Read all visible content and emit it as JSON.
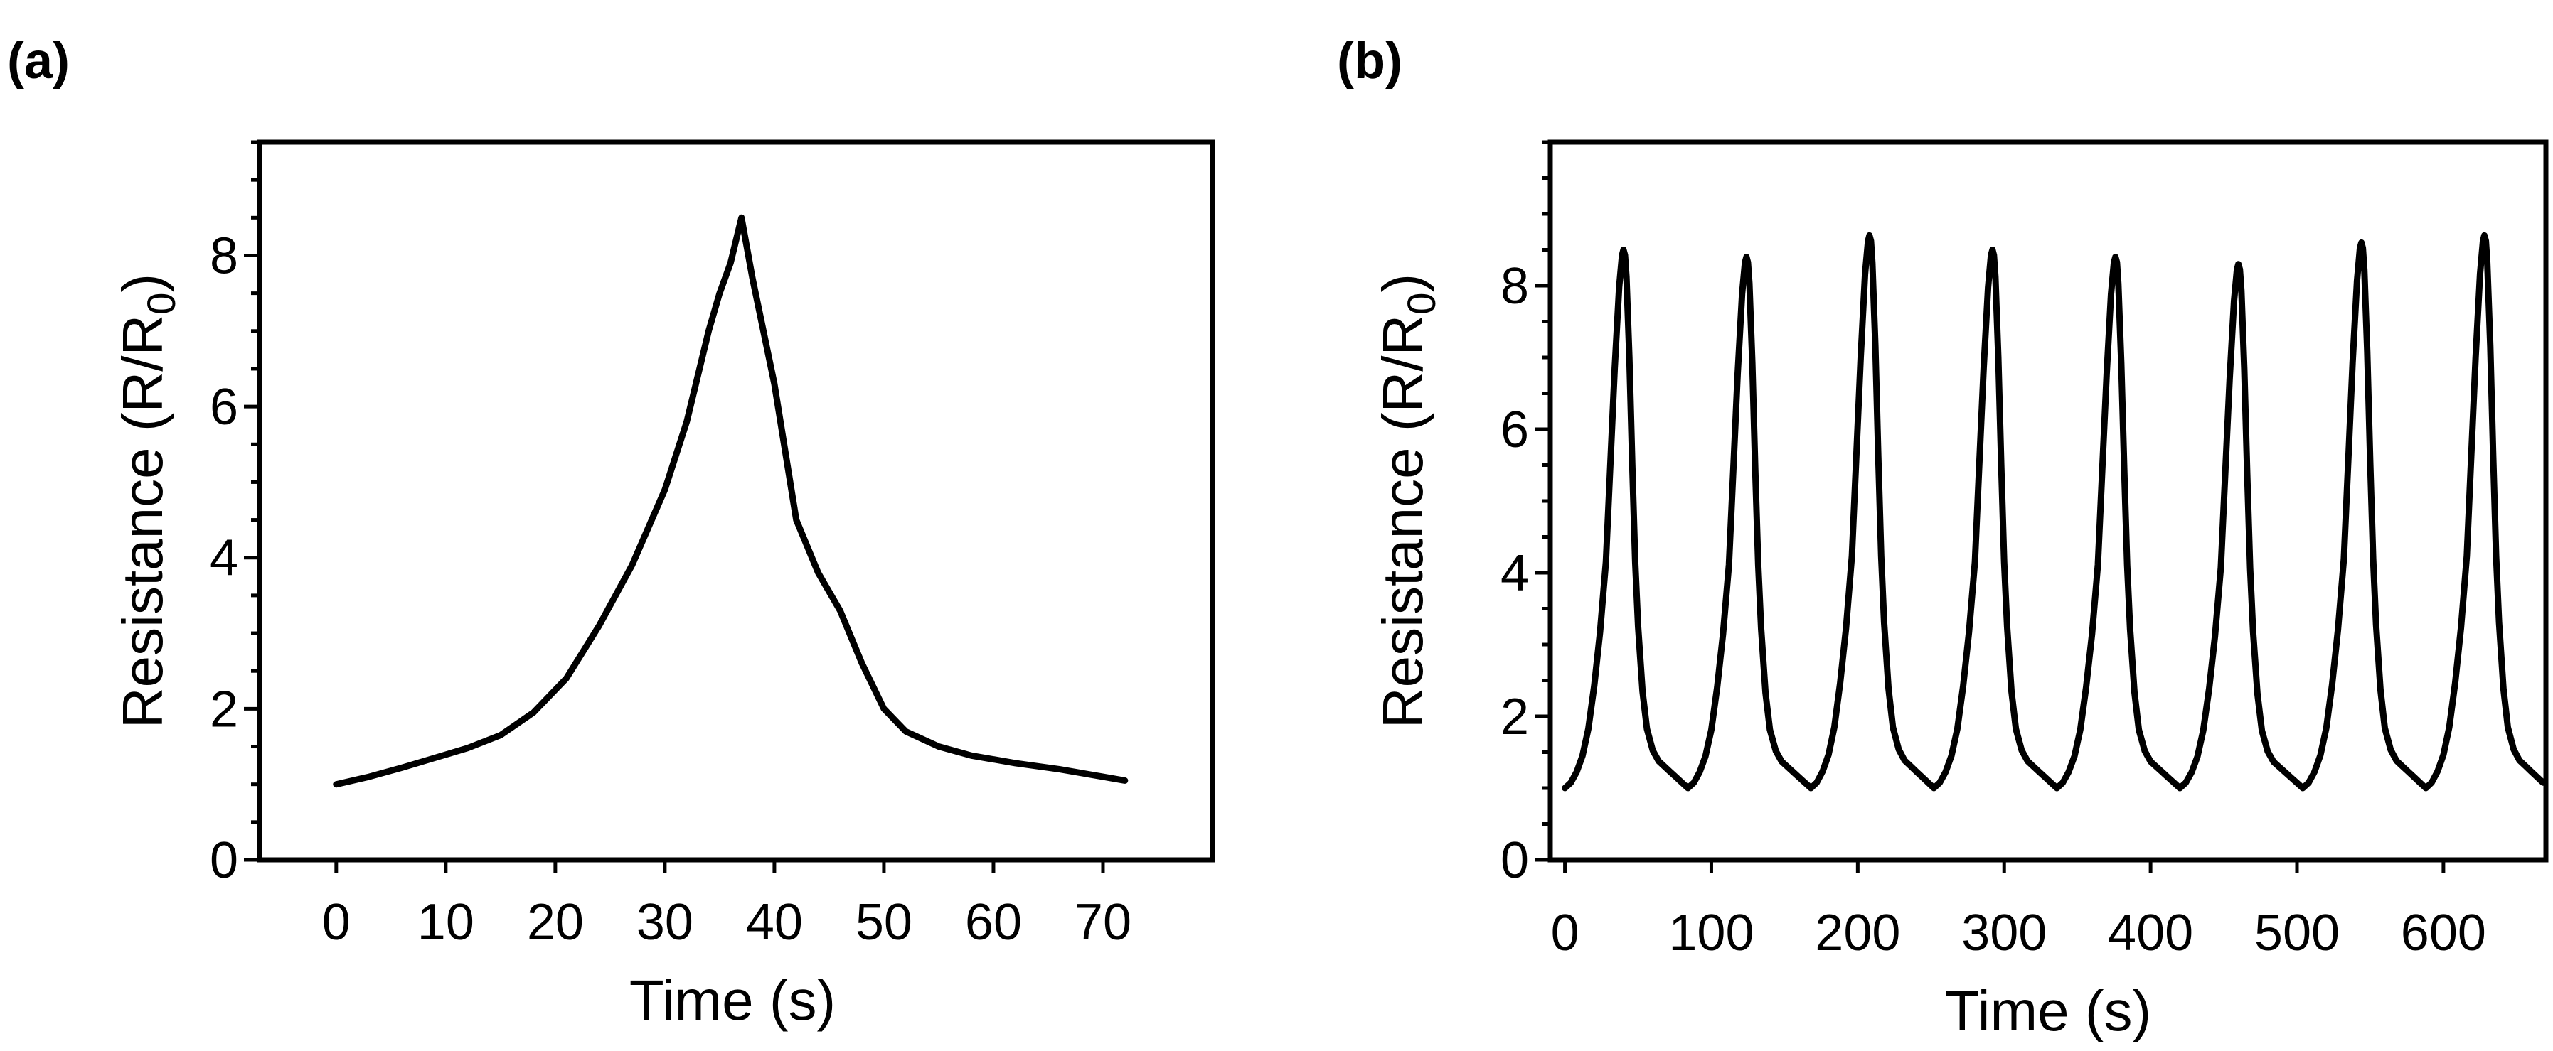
{
  "chart_data": [
    {
      "panel": "(a)",
      "type": "line",
      "xlabel": "Time (s)",
      "ylabel": {
        "prefix": "Resistance (R/R",
        "subscript": "0",
        "suffix": ")"
      },
      "xlim": [
        -7,
        80
      ],
      "ylim": [
        0,
        9.5
      ],
      "xticks": [
        0,
        10,
        20,
        30,
        40,
        50,
        60,
        70
      ],
      "yticks": [
        0,
        2,
        4,
        6,
        8
      ],
      "series": [
        {
          "name": "R/R0",
          "x": [
            0,
            3,
            6,
            9,
            12,
            15,
            18,
            21,
            24,
            27,
            30,
            32,
            34,
            35,
            36,
            37,
            38,
            40,
            42,
            44,
            46,
            48,
            50,
            52,
            55,
            58,
            62,
            66,
            70,
            72
          ],
          "y": [
            1.0,
            1.1,
            1.22,
            1.35,
            1.48,
            1.65,
            1.95,
            2.4,
            3.1,
            3.9,
            4.9,
            5.8,
            7.0,
            7.5,
            7.9,
            8.5,
            7.7,
            6.3,
            4.5,
            3.8,
            3.3,
            2.6,
            2.0,
            1.7,
            1.5,
            1.38,
            1.28,
            1.2,
            1.1,
            1.05
          ]
        }
      ]
    },
    {
      "panel": "(b)",
      "type": "line",
      "xlabel": "Time (s)",
      "ylabel": {
        "prefix": "Resistance (R/R",
        "subscript": "0",
        "suffix": ")"
      },
      "xlim": [
        -10,
        670
      ],
      "ylim": [
        0,
        10
      ],
      "xticks": [
        0,
        100,
        200,
        300,
        400,
        500,
        600
      ],
      "yticks": [
        0,
        2,
        4,
        6,
        8
      ],
      "cycle_period_s": 84,
      "peaks": [
        {
          "t": 40,
          "value": 8.5
        },
        {
          "t": 124,
          "value": 8.4
        },
        {
          "t": 208,
          "value": 8.7
        },
        {
          "t": 292,
          "value": 8.5
        },
        {
          "t": 376,
          "value": 8.4
        },
        {
          "t": 460,
          "value": 8.3
        },
        {
          "t": 544,
          "value": 8.6
        },
        {
          "t": 628,
          "value": 8.7
        }
      ],
      "baseline": 1.0
    }
  ]
}
